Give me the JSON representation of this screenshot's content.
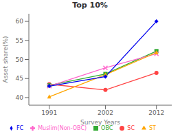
{
  "chart_data": {
    "type": "line",
    "title": "Top 10%",
    "xlabel": "Survey Years",
    "ylabel": "Asset share(%)",
    "x": [
      1991,
      2002,
      2012
    ],
    "series": [
      {
        "name": "SC",
        "color": "#FF4444",
        "marker": "circle",
        "values": [
          43.5,
          42.0,
          46.5
        ]
      },
      {
        "name": "OBC",
        "color": "#33AA33",
        "marker": "square",
        "values": [
          43.2,
          46.2,
          52.2
        ]
      },
      {
        "name": "Muslim(Non-OBC)",
        "color": "#FF66CC",
        "marker": "x",
        "values": [
          43.0,
          47.8,
          51.5
        ]
      },
      {
        "name": "ST",
        "color": "#FFA500",
        "marker": "triangle",
        "values": [
          40.2,
          46.0,
          51.8
        ]
      },
      {
        "name": "FC",
        "color": "#0000EE",
        "marker": "diamond",
        "values": [
          43.0,
          45.5,
          60.0
        ]
      }
    ],
    "xlim": [
      1987,
      2015
    ],
    "xticks": [
      1991,
      2002,
      2012
    ],
    "ylim": [
      38,
      62
    ],
    "yticks": [
      40,
      45,
      50,
      55,
      60
    ],
    "grid": false,
    "legend": "bottom"
  }
}
